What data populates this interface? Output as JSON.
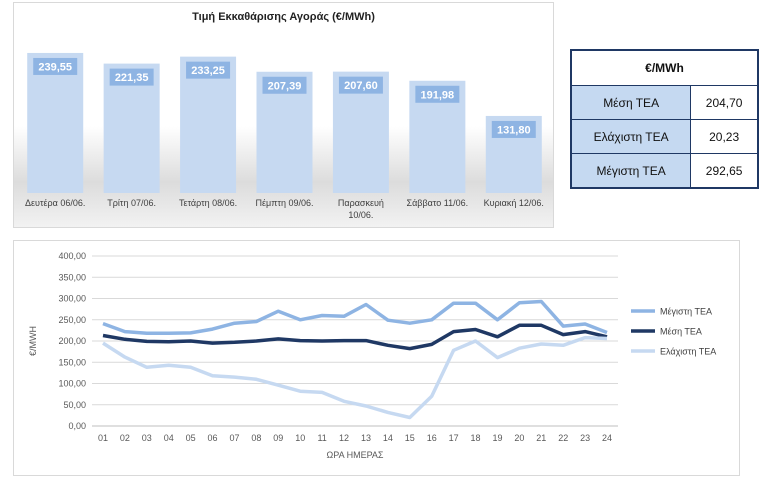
{
  "bar_chart": {
    "title": "Τιμή Εκκαθάρισης Αγοράς (€/MWh)",
    "labels": [
      "239,55",
      "221,35",
      "233,25",
      "207,39",
      "207,60",
      "191,98",
      "131,80"
    ],
    "categories": [
      [
        "Δευτέρα 06/06."
      ],
      [
        "Τρίτη 07/06."
      ],
      [
        "Τετάρτη 08/06."
      ],
      [
        "Πέμπτη 09/06."
      ],
      [
        "Παρασκευή",
        "10/06."
      ],
      [
        "Σάββατο 11/06."
      ],
      [
        "Κυριακή 12/06."
      ]
    ],
    "bar_color": "#c6d9f1",
    "label_color": "#8eb4e3"
  },
  "stats_table": {
    "header": "€/MWh",
    "rows": [
      {
        "label": "Μέση ΤΕΑ",
        "value": "204,70"
      },
      {
        "label": "Ελάχιστη ΤΕΑ",
        "value": "20,23"
      },
      {
        "label": "Μέγιστη ΤΕΑ",
        "value": "292,65"
      }
    ]
  },
  "line_chart": {
    "ylabel": "€/MWH",
    "xlabel": "ΩΡΑ ΗΜΕΡΑΣ",
    "yticks": [
      "0,00",
      "50,00",
      "100,00",
      "150,00",
      "200,00",
      "250,00",
      "300,00",
      "350,00",
      "400,00"
    ],
    "xticks": [
      "01",
      "02",
      "03",
      "04",
      "05",
      "06",
      "07",
      "08",
      "09",
      "10",
      "11",
      "12",
      "13",
      "14",
      "15",
      "16",
      "17",
      "18",
      "19",
      "20",
      "21",
      "22",
      "23",
      "24"
    ],
    "series_colors": [
      "#8eb4e3",
      "#1f3864",
      "#c6d9f1"
    ],
    "series_names": [
      "Μέγιστη ΤΕΑ",
      "Μέση ΤΕΑ",
      "Ελάχιστη ΤΕΑ"
    ]
  },
  "chart_data": [
    {
      "type": "bar",
      "title": "Τιμή Εκκαθάρισης Αγοράς (€/MWh)",
      "categories": [
        "Δευτέρα 06/06.",
        "Τρίτη 07/06.",
        "Τετάρτη 08/06.",
        "Πέμπτη 09/06.",
        "Παρασκευή 10/06.",
        "Σάββατο 11/06.",
        "Κυριακή 12/06."
      ],
      "values": [
        239.55,
        221.35,
        233.25,
        207.39,
        207.6,
        191.98,
        131.8
      ],
      "ylim": [
        0,
        260
      ],
      "grid": false
    },
    {
      "type": "line",
      "xlabel": "ΩΡΑ ΗΜΕΡΑΣ",
      "ylabel": "€/MWH",
      "ylim": [
        0,
        400
      ],
      "grid": true,
      "legend": "right",
      "x": [
        "01",
        "02",
        "03",
        "04",
        "05",
        "06",
        "07",
        "08",
        "09",
        "10",
        "11",
        "12",
        "13",
        "14",
        "15",
        "16",
        "17",
        "18",
        "19",
        "20",
        "21",
        "22",
        "23",
        "24"
      ],
      "series": [
        {
          "name": "Μέγιστη ΤΕΑ",
          "values": [
            241,
            222,
            218,
            218,
            219,
            228,
            242,
            246,
            270,
            250,
            260,
            258,
            286,
            249,
            242,
            250,
            289,
            289,
            250,
            290,
            293,
            235,
            240,
            220
          ]
        },
        {
          "name": "Μέση ΤΕΑ",
          "values": [
            213,
            204,
            199,
            198,
            200,
            195,
            197,
            200,
            205,
            201,
            200,
            201,
            201,
            190,
            182,
            192,
            222,
            227,
            210,
            237,
            237,
            215,
            222,
            210
          ]
        },
        {
          "name": "Ελάχιστη ΤΕΑ",
          "values": [
            195,
            162,
            138,
            143,
            138,
            118,
            115,
            110,
            96,
            82,
            79,
            58,
            47,
            32,
            20,
            70,
            178,
            200,
            161,
            183,
            193,
            190,
            208,
            206
          ]
        }
      ]
    }
  ]
}
